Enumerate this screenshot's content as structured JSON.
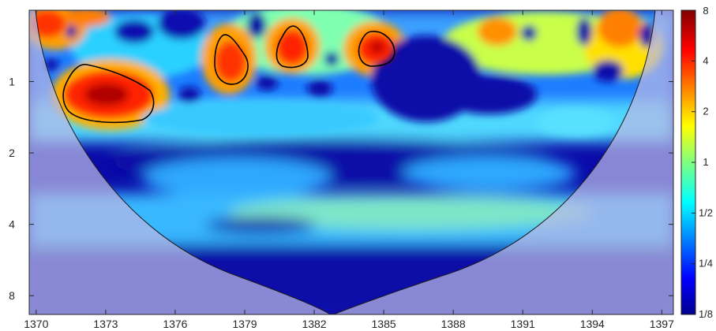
{
  "chart_data": {
    "type": "heatmap",
    "title": "",
    "xlabel": "",
    "ylabel": "",
    "x_ticks": [
      "1370",
      "1373",
      "1376",
      "1379",
      "1382",
      "1385",
      "1388",
      "1391",
      "1394",
      "1397"
    ],
    "x_range": [
      1369.7,
      1397.5
    ],
    "y_scale": "log2",
    "y_ticks": [
      "1",
      "2",
      "4",
      "8"
    ],
    "y_range": [
      0.5,
      9.6
    ],
    "colorbar": {
      "scale": "log2",
      "range": [
        0.125,
        8
      ],
      "labels": [
        "8",
        "4",
        "2",
        "1",
        "1/2",
        "1/4",
        "1/8"
      ],
      "colormap": "jet",
      "colors": [
        "#00008f",
        "#0000ff",
        "#00ffff",
        "#ffff00",
        "#ff0000",
        "#800000"
      ]
    },
    "cone_of_influence": true,
    "significance_contours": 4,
    "grid": false,
    "legend": "colorbar-right"
  }
}
